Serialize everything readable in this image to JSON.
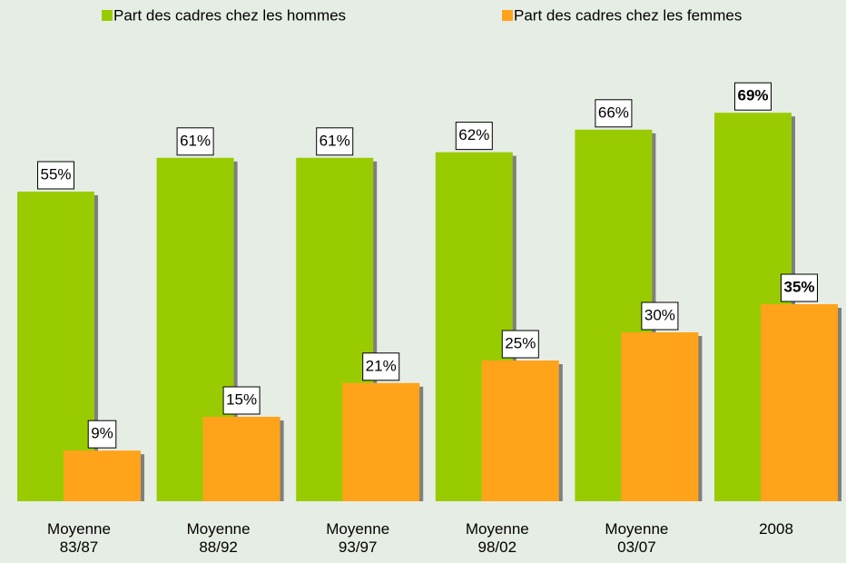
{
  "chart_data": {
    "type": "bar",
    "categories": [
      "Moyenne\n83/87",
      "Moyenne\n88/92",
      "Moyenne\n93/97",
      "Moyenne\n98/02",
      "Moyenne\n03/07",
      "2008"
    ],
    "series": [
      {
        "name": "Part des cadres chez les hommes",
        "color": "#99cc00",
        "values": [
          55,
          61,
          61,
          62,
          66,
          69
        ],
        "value_labels": [
          "55%",
          "61%",
          "61%",
          "62%",
          "66%",
          "69%"
        ]
      },
      {
        "name": "Part des cadres chez les femmes",
        "color": "#ffa31a",
        "values": [
          9,
          15,
          21,
          25,
          30,
          35
        ],
        "value_labels": [
          "9%",
          "15%",
          "21%",
          "25%",
          "30%",
          "35%"
        ]
      }
    ],
    "legend": "top"
  }
}
